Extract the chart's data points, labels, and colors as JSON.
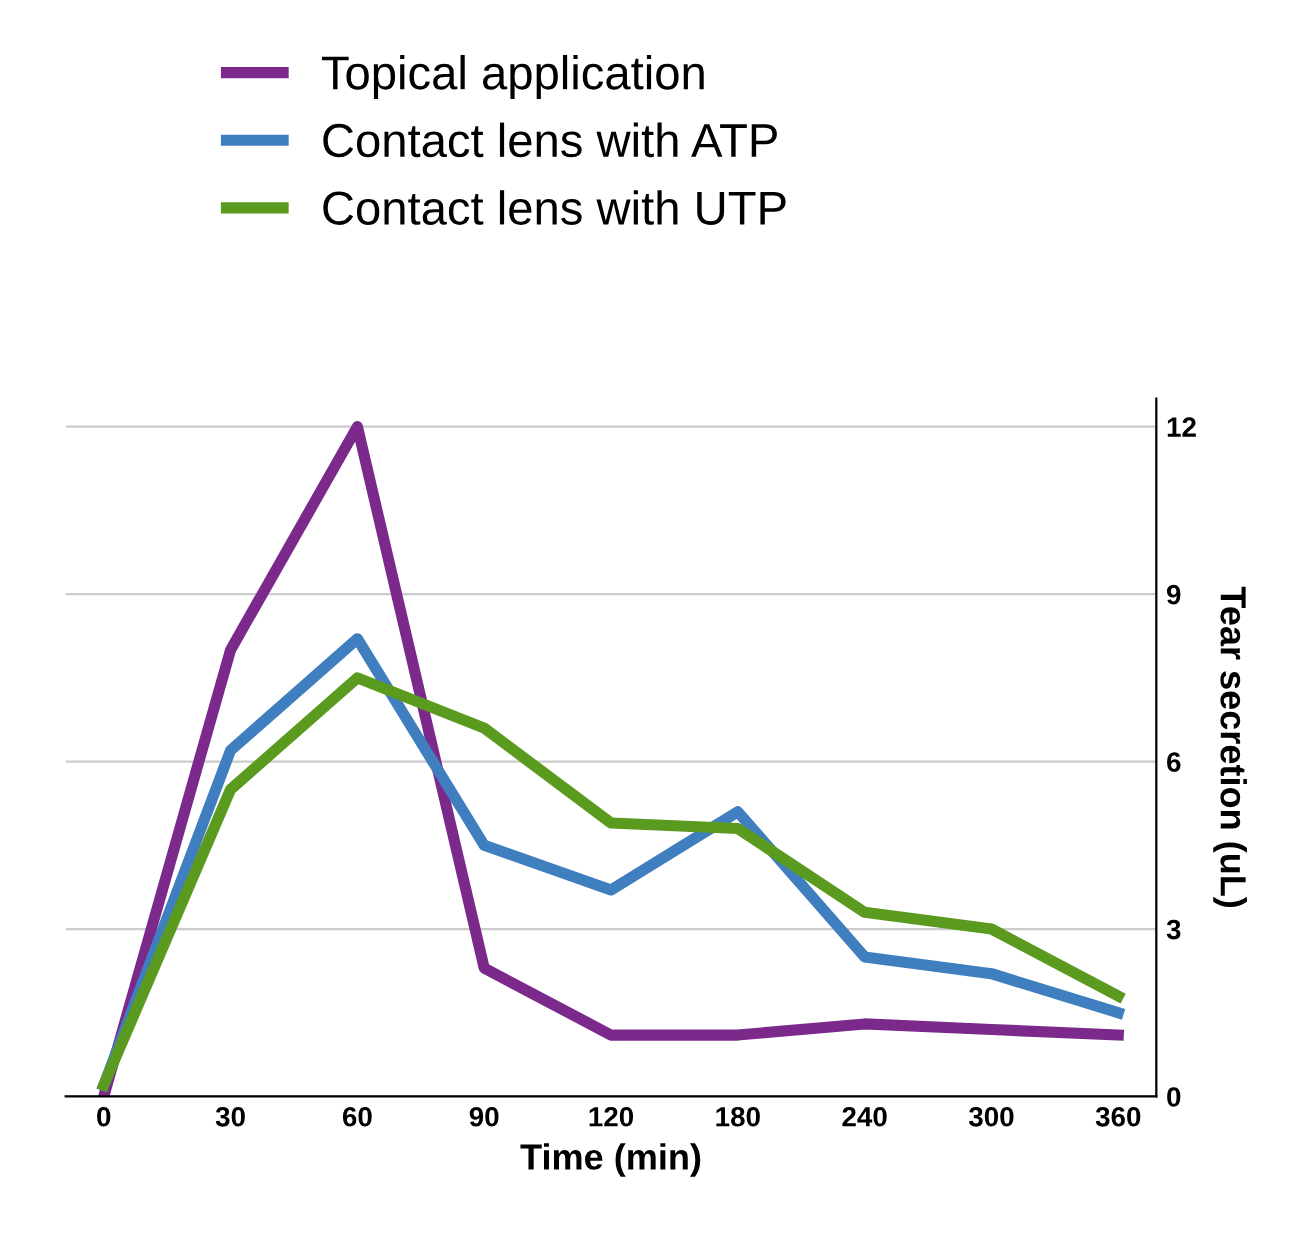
{
  "chart_data": {
    "type": "line",
    "xlabel": "Time (min)",
    "ylabel": "Tear secretion (uL)",
    "categories": [
      "0",
      "30",
      "60",
      "90",
      "120",
      "180",
      "240",
      "300",
      "360"
    ],
    "series": [
      {
        "name": "Topical application",
        "color": "#7b2a8c",
        "values": [
          0,
          8.0,
          12.0,
          2.3,
          1.1,
          1.1,
          1.3,
          1.2,
          1.1
        ]
      },
      {
        "name": "Contact lens with ATP",
        "color": "#3f7fc0",
        "values": [
          0.2,
          6.2,
          8.2,
          4.5,
          3.7,
          5.1,
          2.5,
          2.2,
          1.5
        ]
      },
      {
        "name": "Contact lens with UTP",
        "color": "#5a9a1e",
        "values": [
          0.2,
          5.5,
          7.5,
          6.6,
          4.9,
          4.8,
          3.3,
          3.0,
          1.8
        ]
      }
    ],
    "ylim": [
      0,
      12.5
    ],
    "yticks": [
      0,
      3,
      6,
      9,
      12
    ],
    "grid": "y",
    "legend": "top left",
    "marker": "none",
    "line_style": "solid"
  }
}
